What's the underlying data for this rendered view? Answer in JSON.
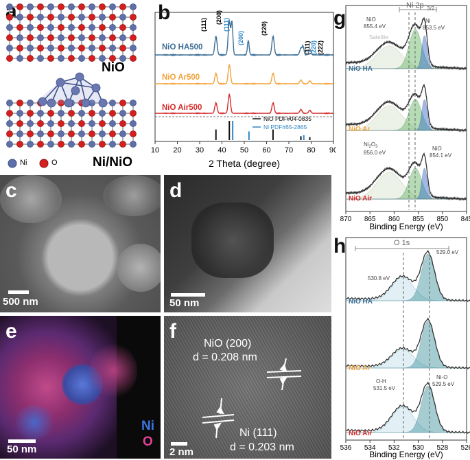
{
  "panels": {
    "a": {
      "letter": "a",
      "top_label": "NiO",
      "bottom_label": "Ni/NiO",
      "legend_ni": "Ni",
      "legend_o": "O"
    },
    "b": {
      "letter": "b",
      "series": [
        "NiO HA500",
        "NiO Ar500",
        "NiO Air500"
      ],
      "peaks_black": [
        "(111)",
        "(200)",
        "(220)",
        "(311)",
        "(222)"
      ],
      "peaks_blue": [
        "(111)",
        "(200)",
        "(220)"
      ],
      "legend": [
        "NiO PDF#04-0835",
        "Ni PDF#65-2865"
      ],
      "xlabel": "2 Theta (degree)",
      "xticks": [
        "10",
        "20",
        "30",
        "40",
        "50",
        "60",
        "70",
        "80",
        "90"
      ]
    },
    "c": {
      "letter": "c",
      "scale": "500 nm"
    },
    "d": {
      "letter": "d",
      "scale": "50 nm"
    },
    "e": {
      "letter": "e",
      "scale": "50 nm",
      "ni": "Ni",
      "o": "O"
    },
    "f": {
      "letter": "f",
      "label1": "NiO (200)",
      "label1b": "d = 0.208 nm",
      "label2": "Ni (111)",
      "label2b": "d = 0.203 nm",
      "scale": "2 nm"
    },
    "g": {
      "letter": "g",
      "header": "Ni 2p",
      "header_sub": "3/2",
      "nio_peak": "NiO",
      "nio_peak_ev": "855.4 eV",
      "ni_peak": "Ni",
      "ni_peak_ev": "853.5 eV",
      "satellite": "Satellite",
      "series": [
        "NiO HA",
        "NiO Ar",
        "NiO Air"
      ],
      "ni2o3": "Ni",
      "ni2o3_sub1": "2",
      "ni2o3_o": "O",
      "ni2o3_sub2": "3",
      "ni2o3_ev": "856.0 eV",
      "nio2": "NiO",
      "nio2_ev": "854.1 eV",
      "xlabel": "Binding Energy (eV)",
      "xticks": [
        "870",
        "865",
        "860",
        "855",
        "850",
        "845"
      ]
    },
    "h": {
      "letter": "h",
      "header": "O 1s",
      "p1": "529.0 eV",
      "p2": "530.8 eV",
      "series": [
        "NiO HA",
        "NiO Ar",
        "NiO Air"
      ],
      "oh": "O-H",
      "oh_ev": "531.5 eV",
      "nio": "Ni-O",
      "nio_ev": "529.5 eV",
      "xlabel": "Binding Energy (eV)",
      "xticks": [
        "536",
        "534",
        "532",
        "530",
        "528",
        "526"
      ]
    }
  },
  "colors": {
    "ha": "#3d6f96",
    "ar": "#f2a33a",
    "air": "#d42a2a",
    "ni_atom": "#5f6fa8",
    "o_atom": "#d51f1f",
    "green": "#5fb35f",
    "blue_fill": "#2f66c8",
    "teal": "#3a8f9a"
  }
}
